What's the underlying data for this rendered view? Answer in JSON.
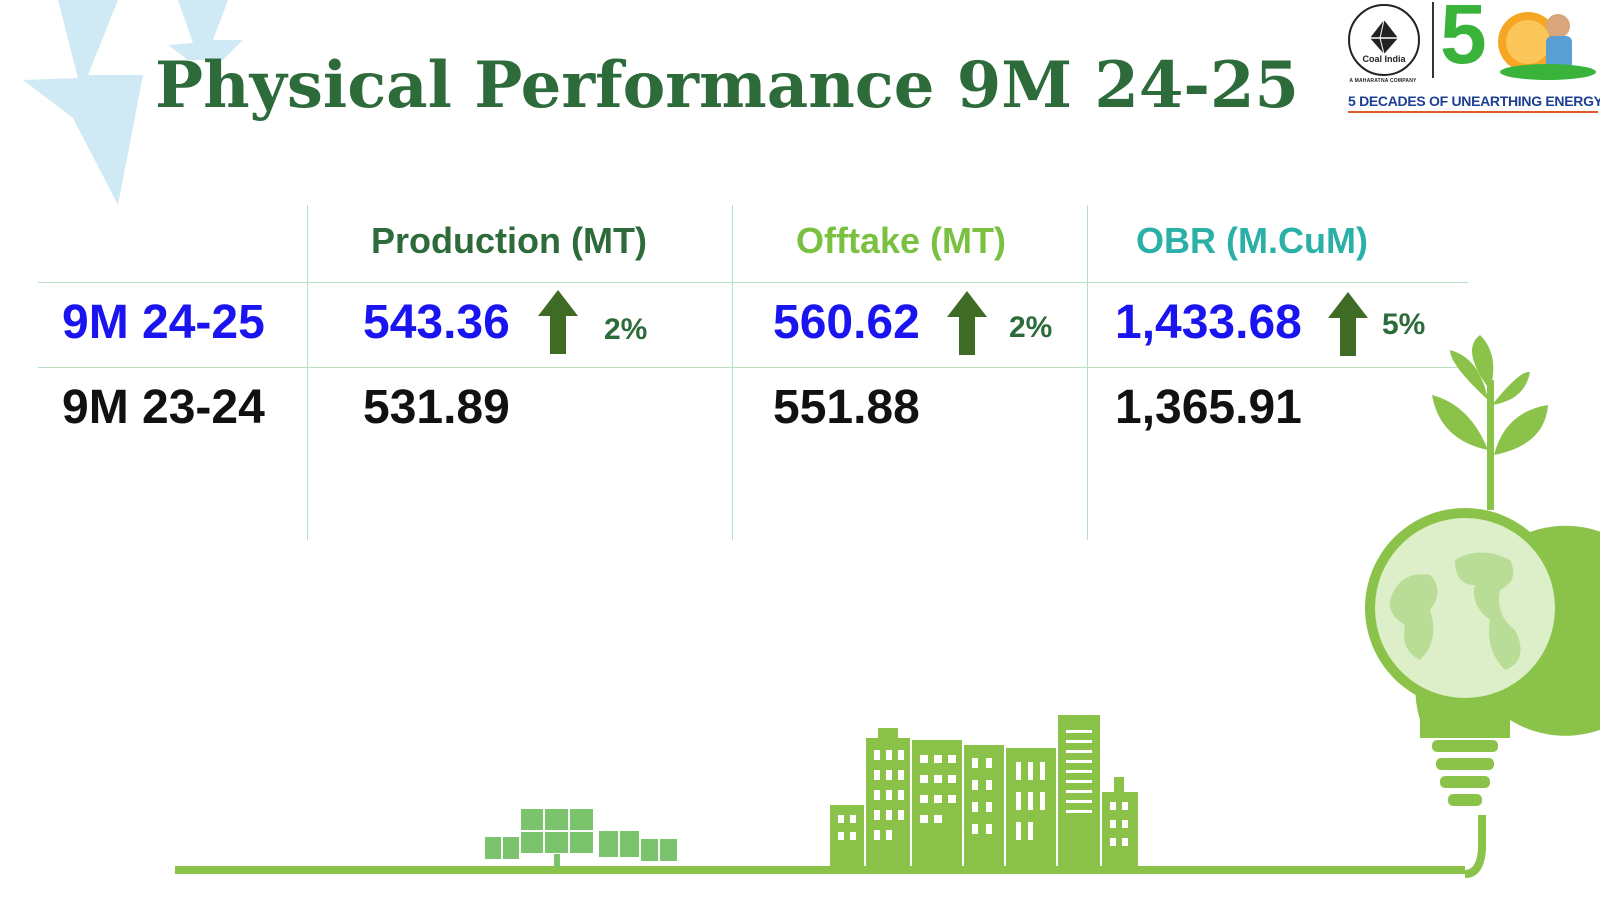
{
  "slide": {
    "title": "Physical Performance 9M 24-25"
  },
  "logo": {
    "emblem_text": "Coal India",
    "emblem_sub": "A MAHARATNA COMPANY",
    "anniversary": "5",
    "tagline": "5 DECADES OF UNEARTHING ENERGY"
  },
  "table": {
    "columns": [
      {
        "label": "Production (MT)",
        "color": "#2d6b3a"
      },
      {
        "label": "Offtake (MT)",
        "color": "#7ac142"
      },
      {
        "label": "OBR (M.CuM)",
        "color": "#2bb0a7"
      }
    ],
    "rows": [
      {
        "label": "9M 24-25",
        "values": [
          "543.36",
          "560.62",
          "1,433.68"
        ],
        "growth": [
          "2%",
          "2%",
          "5%"
        ],
        "trend": [
          "up",
          "up",
          "up"
        ]
      },
      {
        "label": "9M 23-24",
        "values": [
          "531.89",
          "551.88",
          "1,365.91"
        ]
      }
    ]
  },
  "colors": {
    "title": "#2d6b3a",
    "current_year": "#1a14f0",
    "previous_year": "#111111",
    "arrow": "#3f6b25",
    "illustration_green": "#8bc34a"
  },
  "icons": [
    "lightning-bolt-icon",
    "arrow-up-icon",
    "solar-panel-icon",
    "city-skyline-icon",
    "lightbulb-globe-icon",
    "plant-sprout-icon"
  ]
}
